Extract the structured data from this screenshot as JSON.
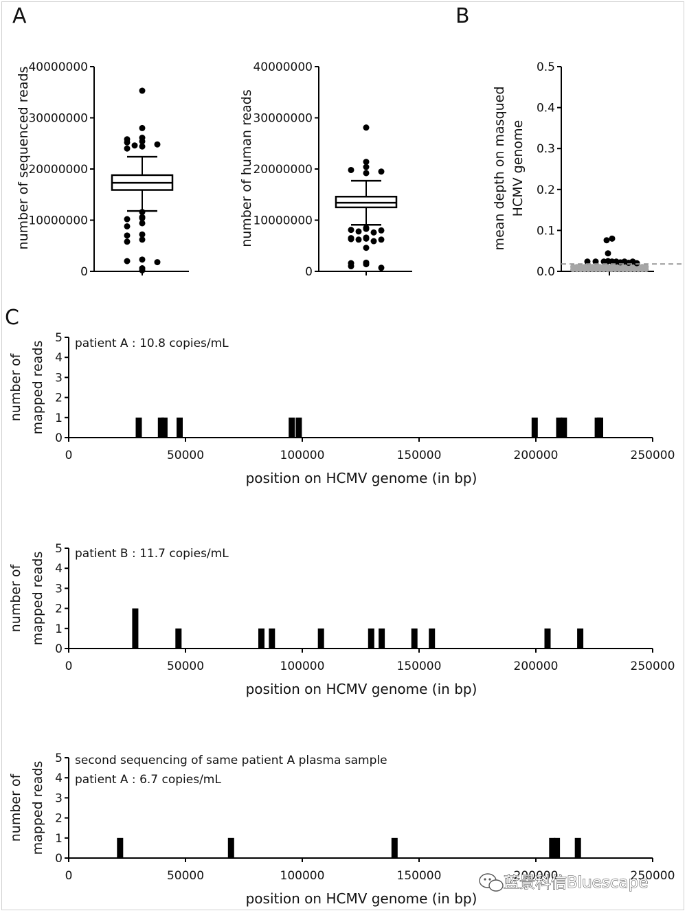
{
  "panel_letters": {
    "a": "A",
    "b": "B",
    "c": "C"
  },
  "watermark": {
    "text": "蓝景科信Bluescape",
    "icon": "wechat-icon"
  },
  "chart_data": [
    {
      "type": "boxplot",
      "id": "seq",
      "panel": "A",
      "ylabel": "number of sequenced reads",
      "ylim": [
        0,
        40000000
      ],
      "yticks": [
        0,
        10000000,
        20000000,
        30000000,
        40000000
      ],
      "ytick_labels": [
        "0",
        "10000000",
        "20000000",
        "30000000",
        "40000000"
      ],
      "box": {
        "whisker_low": 11800000,
        "q1": 15900000,
        "median": 17300000,
        "q3": 18800000,
        "whisker_high": 22400000
      },
      "outliers": [
        35300000,
        28000000,
        26100000,
        25800000,
        25400000,
        25200000,
        24800000,
        24600000,
        24400000,
        24000000,
        11600000,
        10600000,
        10400000,
        10200000,
        9400000,
        8800000,
        7200000,
        7000000,
        6200000,
        5800000,
        2300000,
        2000000,
        1800000,
        600000,
        200000
      ]
    },
    {
      "type": "boxplot",
      "id": "human",
      "panel": "A",
      "ylabel": "number of human  reads",
      "ylim": [
        0,
        40000000
      ],
      "yticks": [
        0,
        10000000,
        20000000,
        30000000,
        40000000
      ],
      "ytick_labels": [
        "0",
        "10000000",
        "20000000",
        "30000000",
        "40000000"
      ],
      "box": {
        "whisker_low": 9100000,
        "q1": 12500000,
        "median": 13400000,
        "q3": 14600000,
        "whisker_high": 17700000
      },
      "outliers": [
        28100000,
        21400000,
        20400000,
        19800000,
        19500000,
        19200000,
        8500000,
        8300000,
        8100000,
        8000000,
        7800000,
        7600000,
        6600000,
        6500000,
        6400000,
        6300000,
        6200000,
        6200000,
        5900000,
        4600000,
        1700000,
        1600000,
        1400000,
        1000000,
        700000
      ]
    },
    {
      "type": "scatter",
      "id": "depth",
      "panel": "B",
      "ylabel_lines": [
        "mean depth on masqued",
        "HCMV genome"
      ],
      "ylim": [
        0,
        0.5
      ],
      "yticks": [
        0,
        0.1,
        0.2,
        0.3,
        0.4,
        0.5
      ],
      "ytick_labels": [
        "0.0",
        "0.1",
        "0.2",
        "0.3",
        "0.4",
        "0.5"
      ],
      "threshold": 0.018,
      "black_points": [
        0.08,
        0.076,
        0.044,
        0.025,
        0.024,
        0.024,
        0.024,
        0.024,
        0.024,
        0.024,
        0.024,
        0.022,
        0.021,
        0.02
      ],
      "grey_points_count": 40,
      "grey_points_value": 0.008
    },
    {
      "type": "bar",
      "id": "c1",
      "panel": "C",
      "annotations": [
        "patient A : 10.8 copies/mL"
      ],
      "xlabel": "position on HCMV genome (in bp)",
      "ylabel_lines": [
        "number of",
        "mapped reads"
      ],
      "xlim": [
        0,
        250000
      ],
      "ylim": [
        0,
        5
      ],
      "xticks": [
        0,
        50000,
        100000,
        150000,
        200000,
        250000
      ],
      "xtick_labels": [
        "0",
        "50000",
        "100000",
        "150000",
        "200000",
        "250000"
      ],
      "yticks": [
        0,
        1,
        2,
        3,
        4,
        5
      ],
      "ytick_labels": [
        "0",
        "1",
        "2",
        "3",
        "4",
        "5"
      ],
      "bars": [
        {
          "x": 30000,
          "count": 1
        },
        {
          "x": 39500,
          "count": 1
        },
        {
          "x": 41000,
          "count": 1
        },
        {
          "x": 47500,
          "count": 1
        },
        {
          "x": 95500,
          "count": 1
        },
        {
          "x": 98500,
          "count": 1
        },
        {
          "x": 199500,
          "count": 1
        },
        {
          "x": 210000,
          "count": 1
        },
        {
          "x": 212000,
          "count": 1
        },
        {
          "x": 226500,
          "count": 1
        },
        {
          "x": 227500,
          "count": 1
        }
      ]
    },
    {
      "type": "bar",
      "id": "c2",
      "panel": "C",
      "annotations": [
        "patient B : 11.7 copies/mL"
      ],
      "xlabel": "position on HCMV genome (in bp)",
      "ylabel_lines": [
        "number of",
        "mapped reads"
      ],
      "xlim": [
        0,
        250000
      ],
      "ylim": [
        0,
        5
      ],
      "xticks": [
        0,
        50000,
        100000,
        150000,
        200000,
        250000
      ],
      "xtick_labels": [
        "0",
        "50000",
        "100000",
        "150000",
        "200000",
        "250000"
      ],
      "yticks": [
        0,
        1,
        2,
        3,
        4,
        5
      ],
      "ytick_labels": [
        "0",
        "1",
        "2",
        "3",
        "4",
        "5"
      ],
      "bars": [
        {
          "x": 28500,
          "count": 2
        },
        {
          "x": 47000,
          "count": 1
        },
        {
          "x": 82500,
          "count": 1
        },
        {
          "x": 87000,
          "count": 1
        },
        {
          "x": 108000,
          "count": 1
        },
        {
          "x": 129500,
          "count": 1
        },
        {
          "x": 134000,
          "count": 1
        },
        {
          "x": 148000,
          "count": 1
        },
        {
          "x": 155500,
          "count": 1
        },
        {
          "x": 205000,
          "count": 1
        },
        {
          "x": 219000,
          "count": 1
        }
      ]
    },
    {
      "type": "bar",
      "id": "c3",
      "panel": "C",
      "annotations": [
        "second sequencing of same patient A plasma sample",
        "patient A : 6.7 copies/mL"
      ],
      "xlabel": "position on HCMV genome (in bp)",
      "ylabel_lines": [
        "number of",
        "mapped reads"
      ],
      "xlim": [
        0,
        250000
      ],
      "ylim": [
        0,
        5
      ],
      "xticks": [
        0,
        50000,
        100000,
        150000,
        200000,
        250000
      ],
      "xtick_labels": [
        "0",
        "50000",
        "100000",
        "150000",
        "200000",
        "250000"
      ],
      "yticks": [
        0,
        1,
        2,
        3,
        4,
        5
      ],
      "ytick_labels": [
        "0",
        "1",
        "2",
        "3",
        "4",
        "5"
      ],
      "bars": [
        {
          "x": 22000,
          "count": 1
        },
        {
          "x": 69500,
          "count": 1
        },
        {
          "x": 139500,
          "count": 1
        },
        {
          "x": 207000,
          "count": 1
        },
        {
          "x": 209000,
          "count": 1
        },
        {
          "x": 218000,
          "count": 1
        }
      ]
    }
  ]
}
